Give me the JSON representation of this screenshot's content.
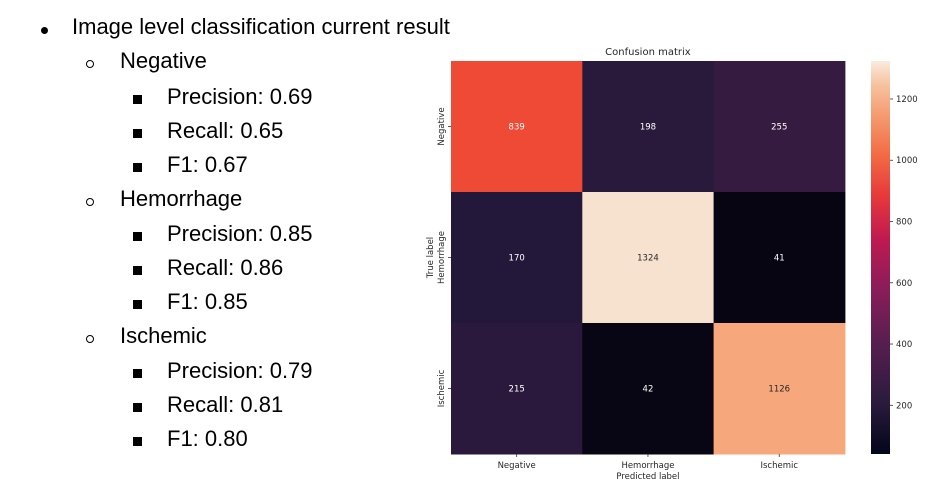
{
  "outline": {
    "heading": "Image level classification current result",
    "classes": [
      {
        "name": "Negative",
        "metrics": [
          "Precision: 0.69",
          "Recall: 0.65",
          "F1: 0.67"
        ]
      },
      {
        "name": "Hemorrhage",
        "metrics": [
          "Precision: 0.85",
          "Recall: 0.86",
          "F1: 0.85"
        ]
      },
      {
        "name": "Ischemic",
        "metrics": [
          "Precision: 0.79",
          "Recall: 0.81",
          "F1: 0.80"
        ]
      }
    ]
  },
  "chart_data": {
    "type": "heatmap",
    "title": "Confusion matrix",
    "xlabel": "Predicted label",
    "ylabel": "True label",
    "x_categories": [
      "Negative",
      "Hemorrhage",
      "Ischemic"
    ],
    "y_categories": [
      "Negative",
      "Hemorrhage",
      "Ischemic"
    ],
    "values": [
      [
        839,
        198,
        255
      ],
      [
        170,
        1324,
        41
      ],
      [
        215,
        42,
        1126
      ]
    ],
    "colorbar": {
      "ticks": [
        200,
        400,
        600,
        800,
        1000,
        1200
      ],
      "range": [
        41,
        1324
      ]
    },
    "colormap": "rocket",
    "cell_colors": [
      [
        "#ee4a36",
        "#291a3b",
        "#361b40"
      ],
      [
        "#24183a",
        "#f7e2cf",
        "#080513"
      ],
      [
        "#2b193d",
        "#080514",
        "#f6a87c"
      ]
    ],
    "annotation_colors": [
      [
        "#ffffff",
        "#ffffff",
        "#ffffff"
      ],
      [
        "#ffffff",
        "#262626",
        "#ffffff"
      ],
      [
        "#ffffff",
        "#ffffff",
        "#262626"
      ]
    ]
  }
}
